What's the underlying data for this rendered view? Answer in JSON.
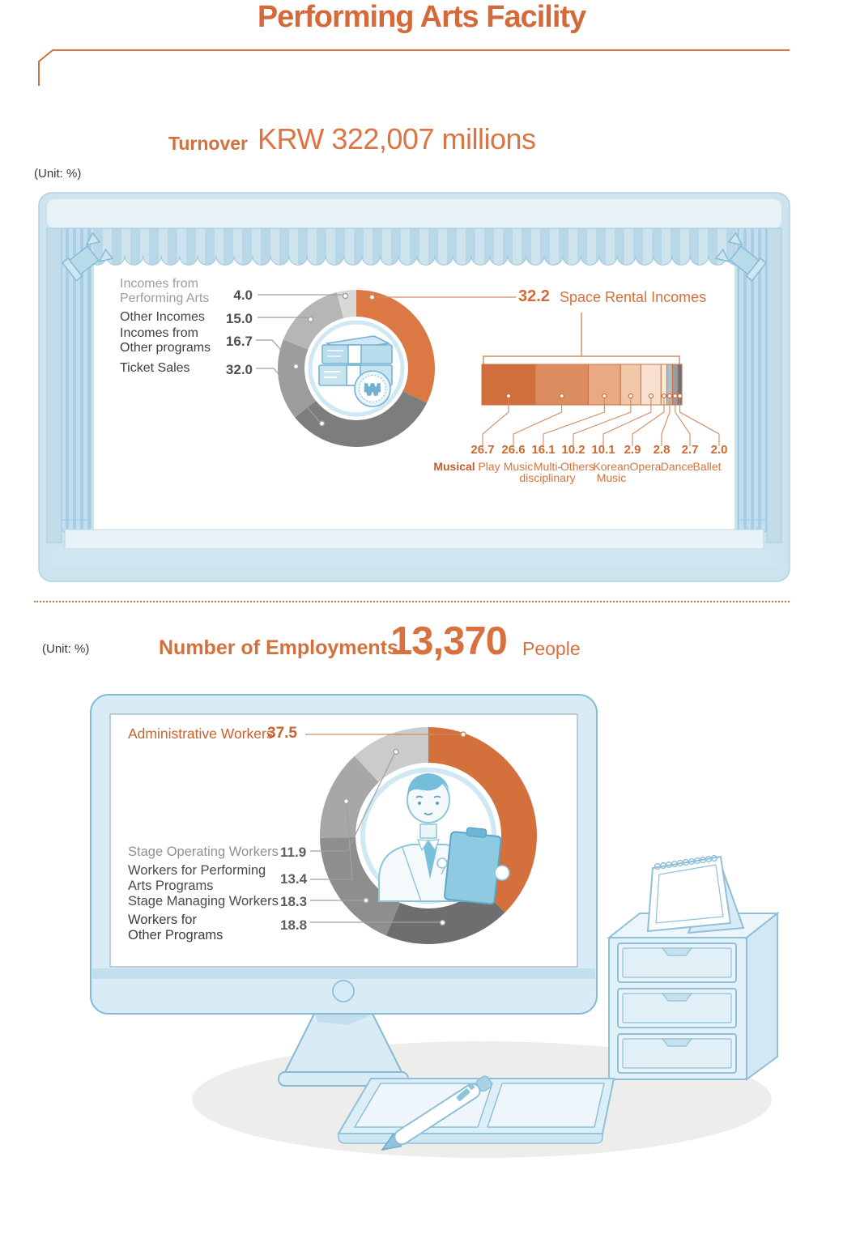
{
  "page": {
    "title": "Performing Arts Facility",
    "unit_label_top": "(Unit: %)",
    "unit_label_bottom": "(Unit: %)",
    "accent_color": "#d4703c",
    "stage_blue": "#cde3ed",
    "monitor_blue": "#d9ecf5"
  },
  "turnover": {
    "label": "Turnover",
    "value": "KRW 322,007 millions"
  },
  "employment": {
    "label": "Number of Employments",
    "value": "13,370",
    "suffix": "People"
  },
  "icons": {
    "won_symbol": "₩"
  },
  "chart_data": [
    {
      "id": "turnover-breakdown",
      "type": "donut",
      "title": "Turnover share by income source (%)",
      "legend_position": "left",
      "segments": [
        {
          "label": "Space Rental Incomes",
          "value": "32.2",
          "color": "#dc7843"
        },
        {
          "label": "Ticket Sales",
          "value": "32.0",
          "color": "#7d7d7d"
        },
        {
          "label": "Incomes from\nOther programs",
          "value": "16.7",
          "color": "#9c9c9c"
        },
        {
          "label": "Other Incomes",
          "value": "15.0",
          "color": "#b6b6b6"
        },
        {
          "label": "Incomes from\nPerforming Arts",
          "value": "4.0",
          "color": "#d8d8d8"
        }
      ]
    },
    {
      "id": "space-rental-by-genre",
      "type": "stacked-bar",
      "title": "Space Rental Incomes breakdown by genre (%)",
      "categories": [
        "Musical",
        "Play",
        "Music",
        "Multi-\ndisciplinary",
        "Others",
        "Korean\nMusic",
        "Opera",
        "Dance",
        "Ballet"
      ],
      "values": [
        "26.7",
        "26.6",
        "16.1",
        "10.2",
        "10.1",
        "2.9",
        "2.8",
        "2.7",
        "2.0"
      ],
      "colors": [
        "#d06f3b",
        "#dc8d60",
        "#e7aa82",
        "#f0c7a7",
        "#f7e0cd",
        "#f9e9dc",
        "#b3bfc7",
        "#939ea6",
        "#6a737a"
      ],
      "segment_border_color": "#cf7040"
    },
    {
      "id": "employment-breakdown",
      "type": "donut",
      "title": "Employment share by worker type (%)",
      "legend_position": "left",
      "segments": [
        {
          "label": "Administrative Workers",
          "value": "37.5",
          "color": "#d4703c"
        },
        {
          "label": "Workers for\nOther Programs",
          "value": "18.8",
          "color": "#6e6e6e"
        },
        {
          "label": "Stage Managing Workers",
          "value": "18.3",
          "color": "#8e8e8e"
        },
        {
          "label": "Workers for Performing\nArts Programs",
          "value": "13.4",
          "color": "#a7a7a7"
        },
        {
          "label": "Stage Operating Workers",
          "value": "11.9",
          "color": "#cbcbcb"
        }
      ]
    }
  ]
}
